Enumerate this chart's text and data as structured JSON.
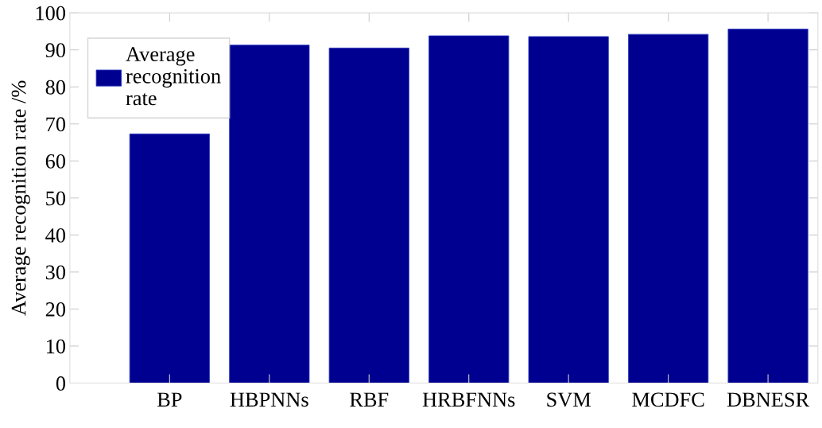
{
  "chart_data": {
    "type": "bar",
    "ylabel": "Average recognition rate /%",
    "categories": [
      "BP",
      "HBPNNs",
      "RBF",
      "HRBFNNs",
      "SVM",
      "MCDFC",
      "DBNESR"
    ],
    "series": [
      {
        "name": "Average\nrecognition\nrate",
        "color": "#000090",
        "values": [
          67.3,
          91.3,
          90.5,
          93.8,
          93.6,
          94.2,
          95.6
        ]
      }
    ],
    "ylim": [
      0,
      100
    ],
    "yticks": [
      0,
      10,
      20,
      30,
      40,
      50,
      60,
      70,
      80,
      90,
      100
    ],
    "grid": false,
    "legend": "top left"
  }
}
